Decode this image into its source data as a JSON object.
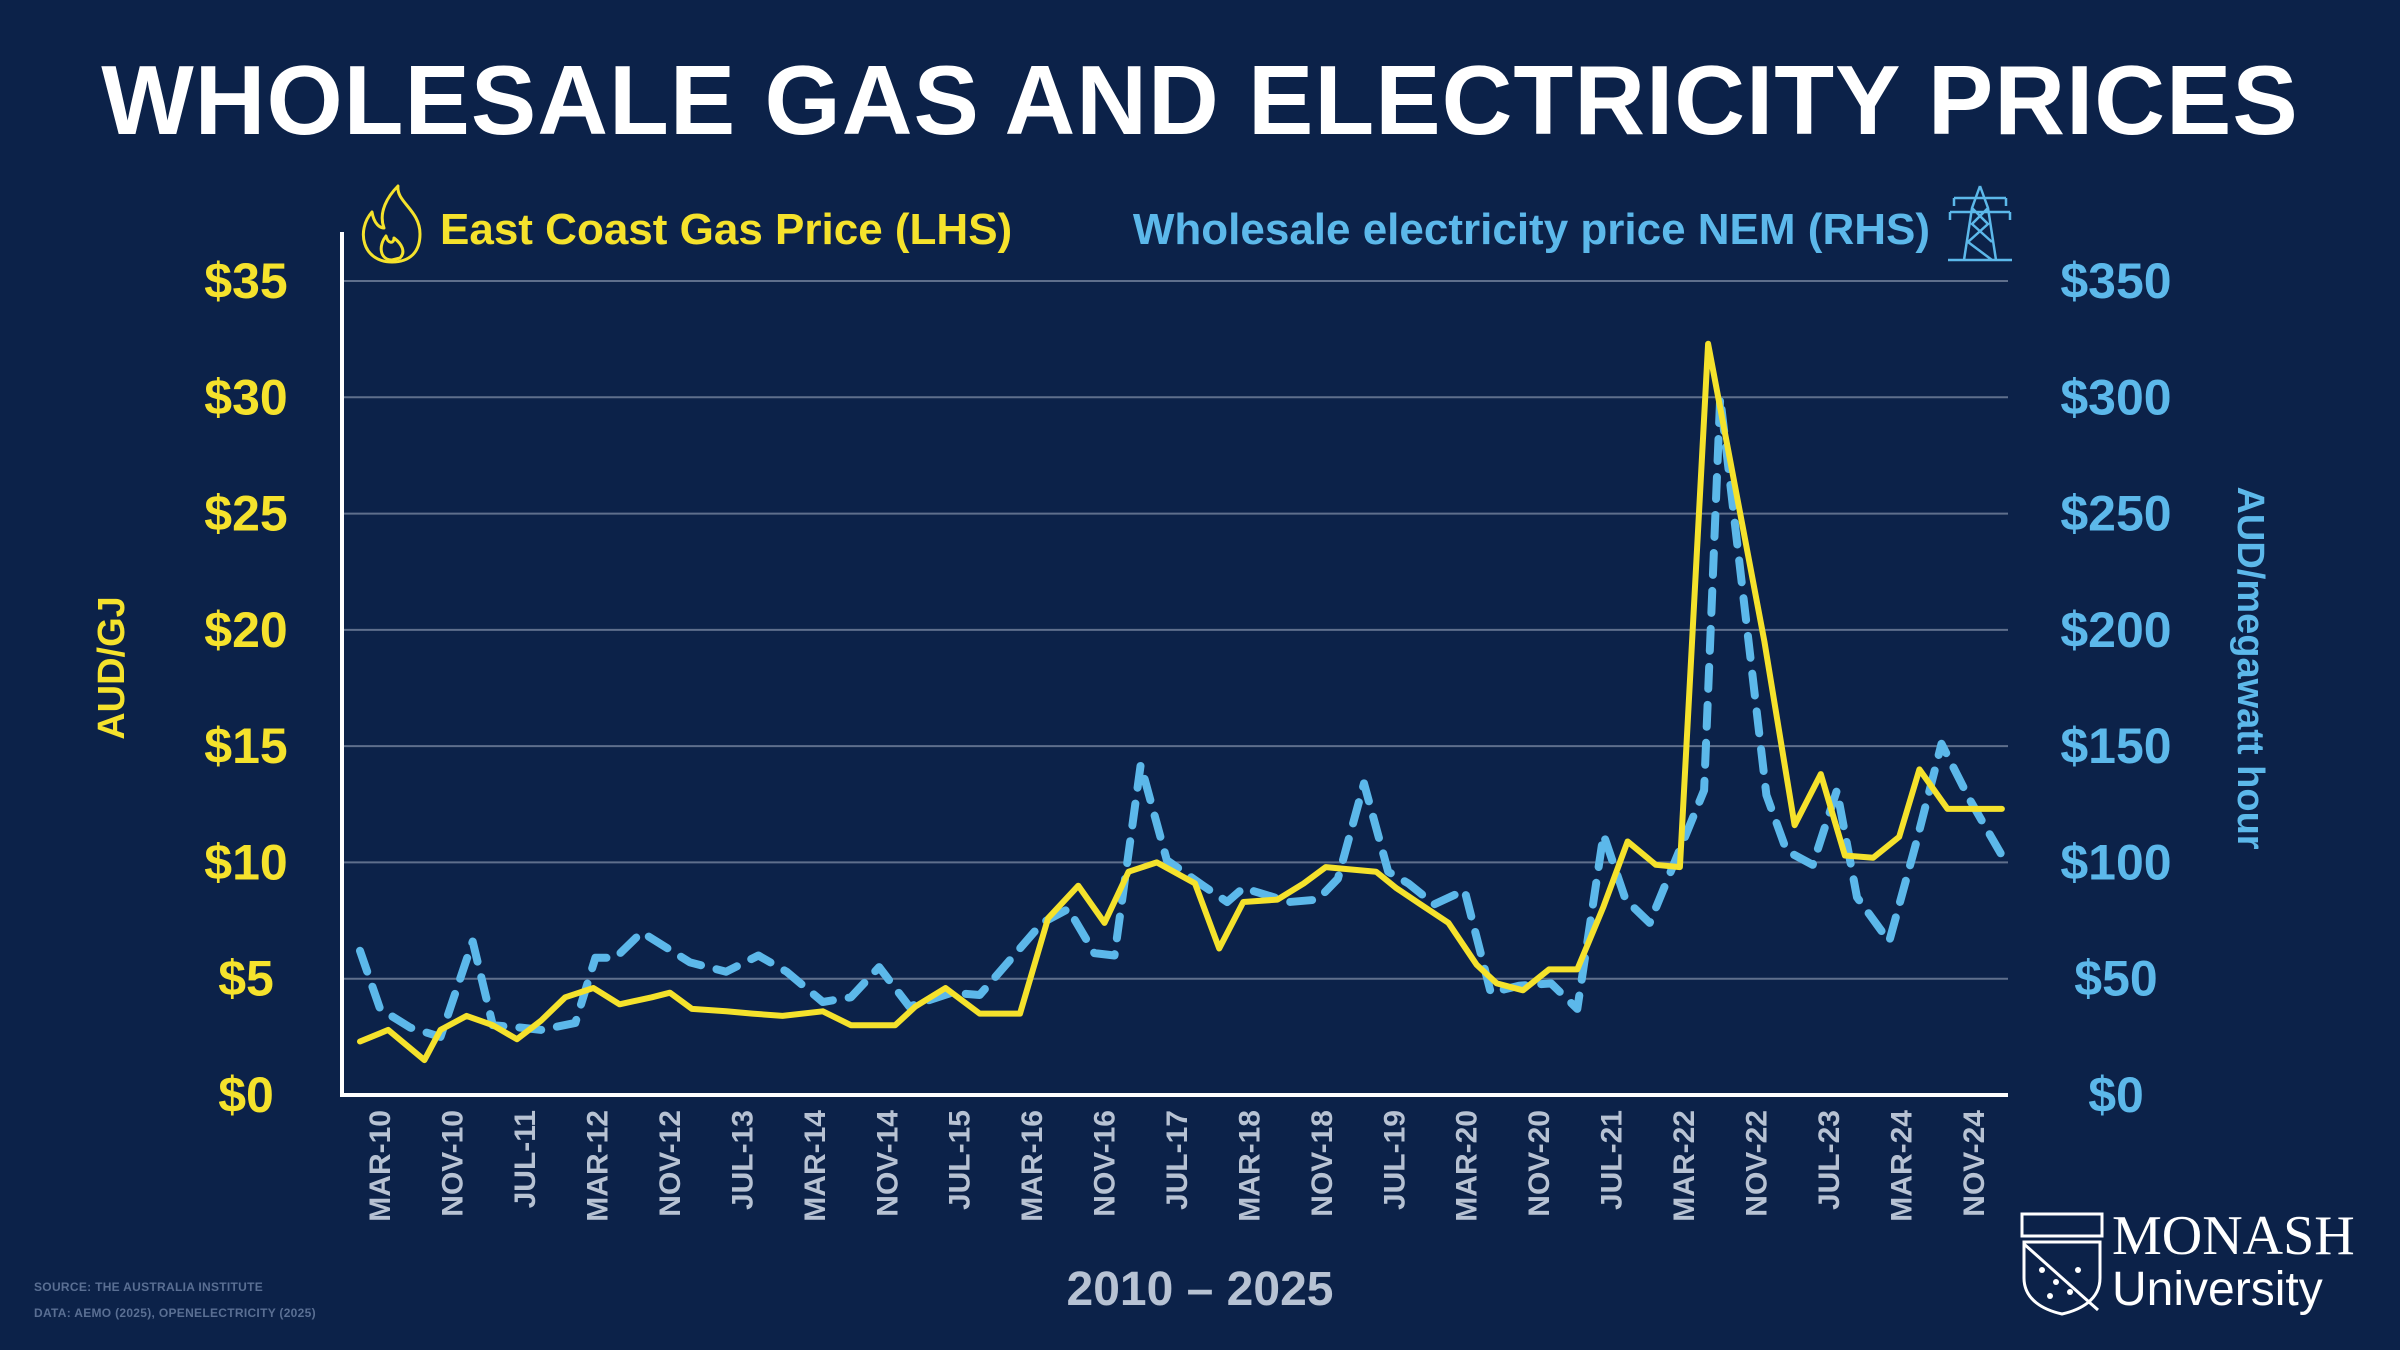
{
  "title": "WHOLESALE GAS AND ELECTRICITY PRICES",
  "period": "2010 – 2025",
  "source_line": "SOURCE: THE AUSTRALIA INSTITUTE",
  "data_line": "DATA: AEMO (2025), OPENELECTRICITY (2025)",
  "logo": {
    "name": "MONASH",
    "sub": "University"
  },
  "colors": {
    "background": "#0c2249",
    "gas": "#f5e22c",
    "electricity": "#5cb8ea",
    "grid": "#5f6f8c",
    "axis": "#ffffff",
    "tick": "#b7c2d3"
  },
  "icons": {
    "gas": "flame-icon",
    "electricity": "transmission-tower-icon"
  },
  "chart_data": {
    "type": "line",
    "ylabel": "AUD/GJ",
    "y2label": "AUD/megawatt hour",
    "ylim": [
      0,
      35
    ],
    "y2lim": [
      0,
      350
    ],
    "yticks": [
      "$0",
      "$5",
      "$10",
      "$15",
      "$20",
      "$25",
      "$30",
      "$35"
    ],
    "y2ticks": [
      "$0",
      "$50",
      "$100",
      "$150",
      "$200",
      "$250",
      "$300",
      "$350"
    ],
    "xticks": [
      "MAR-10",
      "NOV-10",
      "JUL-11",
      "MAR-12",
      "NOV-12",
      "JUL-13",
      "MAR-14",
      "NOV-14",
      "JUL-15",
      "MAR-16",
      "NOV-16",
      "JUL-17",
      "MAR-18",
      "NOV-18",
      "JUL-19",
      "MAR-20",
      "NOV-20",
      "JUL-21",
      "MAR-22",
      "NOV-22",
      "JUL-23",
      "MAR-24",
      "NOV-24"
    ],
    "grid": true,
    "legend": "top",
    "series": [
      {
        "name": "East Coast Gas Price (LHS)",
        "axis": "left",
        "style": "solid",
        "color": "#f5e22c",
        "points": [
          [
            0,
            2.3
          ],
          [
            1.4,
            2.8
          ],
          [
            3.2,
            1.5
          ],
          [
            4,
            2.8
          ],
          [
            5.3,
            3.4
          ],
          [
            6.6,
            3
          ],
          [
            7.8,
            2.4
          ],
          [
            9,
            3.2
          ],
          [
            10.2,
            4.2
          ],
          [
            11.6,
            4.6
          ],
          [
            12.9,
            3.9
          ],
          [
            14.5,
            4.2
          ],
          [
            15.4,
            4.4
          ],
          [
            16.5,
            3.7
          ],
          [
            18.2,
            3.6
          ],
          [
            19.5,
            3.5
          ],
          [
            21,
            3.4
          ],
          [
            23,
            3.6
          ],
          [
            24.4,
            3
          ],
          [
            26.6,
            3
          ],
          [
            27.6,
            3.8
          ],
          [
            29.1,
            4.6
          ],
          [
            30.8,
            3.5
          ],
          [
            32.8,
            3.5
          ],
          [
            34.2,
            7.6
          ],
          [
            35.7,
            9
          ],
          [
            37,
            7.4
          ],
          [
            38.2,
            9.6
          ],
          [
            39.6,
            10
          ],
          [
            41.5,
            9.1
          ],
          [
            42.7,
            6.3
          ],
          [
            43.9,
            8.3
          ],
          [
            45.6,
            8.4
          ],
          [
            46.9,
            9.1
          ],
          [
            48,
            9.8
          ],
          [
            49.2,
            9.7
          ],
          [
            50.5,
            9.6
          ],
          [
            51.5,
            8.9
          ],
          [
            52.7,
            8.2
          ],
          [
            54.1,
            7.4
          ],
          [
            55.5,
            5.6
          ],
          [
            56.5,
            4.8
          ],
          [
            57.8,
            4.5
          ],
          [
            59.1,
            5.4
          ],
          [
            60.5,
            5.4
          ],
          [
            61.8,
            8.1
          ],
          [
            63,
            10.9
          ],
          [
            64.4,
            9.9
          ],
          [
            65.6,
            9.8
          ],
          [
            67,
            32.3
          ],
          [
            69.8,
            19.5
          ],
          [
            71.3,
            11.6
          ],
          [
            72.6,
            13.8
          ],
          [
            73.8,
            10.3
          ],
          [
            75.2,
            10.2
          ],
          [
            76.5,
            11.1
          ],
          [
            77.5,
            14
          ],
          [
            78.9,
            12.3
          ],
          [
            80.4,
            12.3
          ],
          [
            81.6,
            12.3
          ]
        ]
      },
      {
        "name": "Wholesale electricity price NEM (RHS)",
        "axis": "right",
        "style": "dashed",
        "color": "#5cb8ea",
        "points": [
          [
            0,
            62
          ],
          [
            1,
            37
          ],
          [
            2.5,
            29
          ],
          [
            4,
            25
          ],
          [
            5.6,
            66
          ],
          [
            6.6,
            30
          ],
          [
            8,
            29
          ],
          [
            9,
            28
          ],
          [
            10.7,
            31
          ],
          [
            11.7,
            59
          ],
          [
            12.7,
            59
          ],
          [
            14,
            70
          ],
          [
            16.4,
            57
          ],
          [
            18.2,
            53
          ],
          [
            19.8,
            60
          ],
          [
            21.2,
            53
          ],
          [
            23,
            40
          ],
          [
            24.4,
            42
          ],
          [
            25.8,
            55
          ],
          [
            27.3,
            38
          ],
          [
            29.4,
            44
          ],
          [
            30.8,
            43
          ],
          [
            32.5,
            60
          ],
          [
            33.9,
            74
          ],
          [
            35.2,
            80
          ],
          [
            36.5,
            61
          ],
          [
            37.5,
            60
          ],
          [
            38.8,
            142
          ],
          [
            40.1,
            101
          ],
          [
            41.9,
            90
          ],
          [
            43.1,
            83
          ],
          [
            43.9,
            89
          ],
          [
            46.2,
            83
          ],
          [
            47.6,
            84
          ],
          [
            48.6,
            93
          ],
          [
            49.9,
            134
          ],
          [
            51.1,
            96
          ],
          [
            52.1,
            91
          ],
          [
            53.4,
            82
          ],
          [
            54.9,
            88
          ],
          [
            56.2,
            44
          ],
          [
            57.6,
            47
          ],
          [
            59.2,
            48
          ],
          [
            60.5,
            37
          ],
          [
            61.8,
            112
          ],
          [
            62.9,
            84
          ],
          [
            64.1,
            74
          ],
          [
            66.8,
            131
          ],
          [
            67.6,
            300
          ],
          [
            69.9,
            129
          ],
          [
            70.9,
            105
          ],
          [
            72.2,
            99
          ],
          [
            73.4,
            131
          ],
          [
            74.4,
            85
          ],
          [
            76,
            66
          ],
          [
            77.3,
            107
          ],
          [
            78.6,
            151
          ],
          [
            80,
            127
          ],
          [
            81.6,
            103
          ]
        ]
      }
    ]
  }
}
